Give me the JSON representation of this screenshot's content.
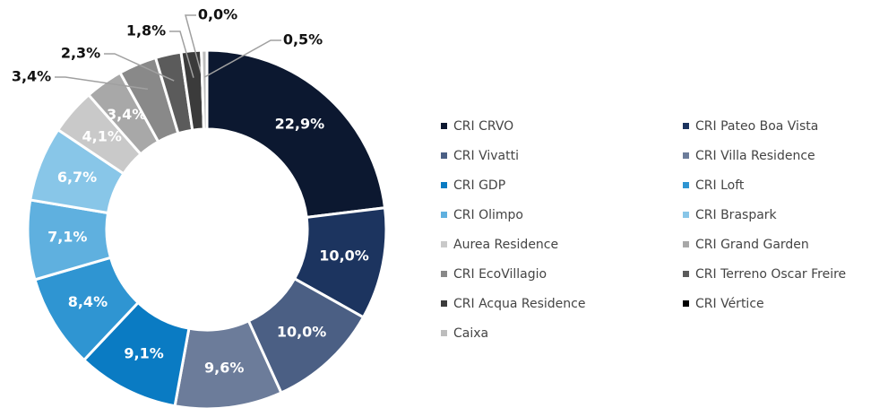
{
  "chart_data": {
    "type": "donut",
    "categories": [
      "CRI CRVO",
      "CRI Pateo Boa Vista",
      "CRI Vivatti",
      "CRI Villa Residence",
      "CRI GDP",
      "CRI Loft",
      "CRI Olimpo",
      "CRI Braspark",
      "Aurea Residence",
      "CRI Grand Garden",
      "CRI EcoVillagio",
      "CRI Terreno Oscar Freire",
      "CRI Acqua Residence",
      "CRI Vértice",
      "Caixa"
    ],
    "values": [
      22.9,
      10.0,
      10.0,
      9.6,
      9.1,
      8.4,
      7.1,
      6.7,
      4.1,
      3.4,
      3.4,
      2.3,
      1.8,
      0.0,
      0.5
    ],
    "value_labels": [
      "22,9%",
      "10,0%",
      "10,0%",
      "9,6%",
      "9,1%",
      "8,4%",
      "7,1%",
      "6,7%",
      "4,1%",
      "3,4%",
      "3,4%",
      "2,3%",
      "1,8%",
      "0,0%",
      "0,5%"
    ],
    "colors": [
      "#0c1830",
      "#1c345f",
      "#4b5f84",
      "#6c7c9a",
      "#0a7bc3",
      "#2f95d2",
      "#5fb0df",
      "#88c6e8",
      "#c9c9c9",
      "#a8a8a8",
      "#898989",
      "#5b5b5b",
      "#3b3b3b",
      "#000000",
      "#bdbdbd"
    ]
  }
}
